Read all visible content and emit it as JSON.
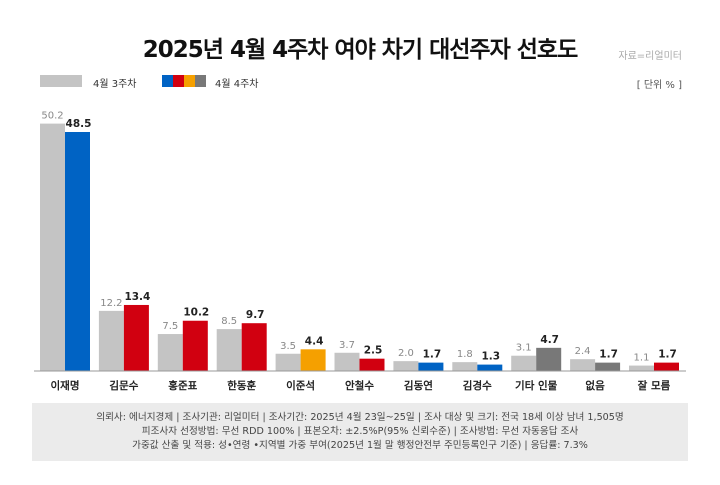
{
  "title": "2025년 4월 4주차 여야 차기 대선주자 선호도",
  "source": "자료=리얼미터",
  "unit": "[ 단위 % ]",
  "legend": {
    "prev_label": "4월 3주차",
    "cur_label": "4월 4주차",
    "prev_color": "#c4c4c4",
    "cur_colors": [
      "#0063c4",
      "#d10010",
      "#f5a000",
      "#787878"
    ]
  },
  "chart_data": {
    "type": "bar",
    "title": "2025년 4월 4주차 여야 차기 대선주자 선호도",
    "xlabel": "",
    "ylabel": "",
    "unit": "%",
    "ylim": [
      0,
      55
    ],
    "grid": false,
    "legend_position": "top-left",
    "categories": [
      "이재명",
      "김문수",
      "홍준표",
      "한동훈",
      "이준석",
      "안철수",
      "김동연",
      "김경수",
      "기타 인물",
      "없음",
      "잘 모름"
    ],
    "series": [
      {
        "name": "4월 3주차",
        "values": [
          50.2,
          12.2,
          7.5,
          8.5,
          3.5,
          3.7,
          2.0,
          1.8,
          3.1,
          2.4,
          1.1
        ],
        "colors": [
          "#c4c4c4",
          "#c4c4c4",
          "#c4c4c4",
          "#c4c4c4",
          "#c4c4c4",
          "#c4c4c4",
          "#c4c4c4",
          "#c4c4c4",
          "#c4c4c4",
          "#c4c4c4",
          "#c4c4c4"
        ]
      },
      {
        "name": "4월 4주차",
        "values": [
          48.5,
          13.4,
          10.2,
          9.7,
          4.4,
          2.5,
          1.7,
          1.3,
          4.7,
          1.7,
          1.7
        ],
        "colors": [
          "#0063c4",
          "#d10010",
          "#d10010",
          "#d10010",
          "#f5a000",
          "#d10010",
          "#0063c4",
          "#0063c4",
          "#787878",
          "#787878",
          "#d10010"
        ]
      }
    ]
  },
  "footer": {
    "line1": "의뢰사: 에너지경제 | 조사기관: 리얼미터 | 조사기간: 2025년 4월 23일~25일 | 조사 대상 및 크기: 전국 18세 이상 남녀 1,505명",
    "line2": "피조사자 선정방법: 무선 RDD 100% | 표본오차: ±2.5%P(95% 신뢰수준) | 조사방법: 무선 자동응답 조사",
    "line3": "가중값 산출 및 적용: 성•연령 •지역별 가중 부여(2025년 1월 말 행정안전부 주민등록인구 기준) | 응답률: 7.3%"
  }
}
